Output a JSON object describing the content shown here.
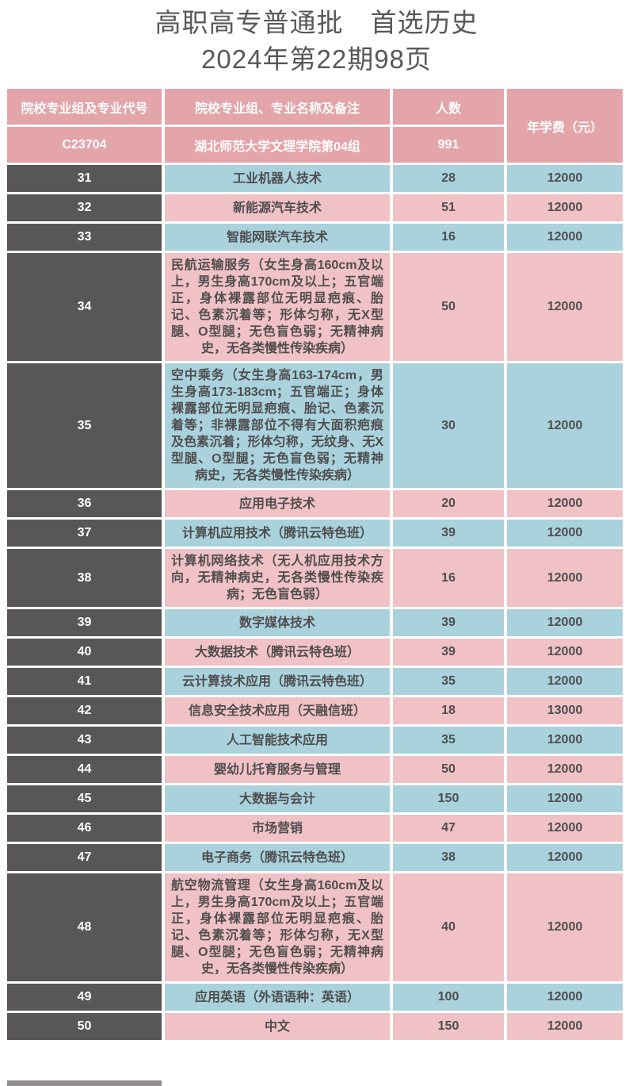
{
  "title": {
    "line1": "高职高专普通批　首选历史",
    "line2": "2024年第22期98页"
  },
  "table": {
    "headers": {
      "col1": "院校专业组及专业代号",
      "col2": "院校专业组、专业名称及备注",
      "col3": "人数",
      "col4": "年学费（元）"
    },
    "group_row": {
      "code": "C23704",
      "name": "湖北师范大学文理学院第04组",
      "count": "991"
    },
    "rows": [
      {
        "code": "31",
        "major": "工业机器人技术",
        "count": "28",
        "fee": "12000",
        "tone": "blue"
      },
      {
        "code": "32",
        "major": "新能源汽车技术",
        "count": "51",
        "fee": "12000",
        "tone": "pink"
      },
      {
        "code": "33",
        "major": "智能网联汽车技术",
        "count": "16",
        "fee": "12000",
        "tone": "blue"
      },
      {
        "code": "34",
        "major": "民航运输服务（女生身高160cm及以上，男生身高170cm及以上；五官端正，身体裸露部位无明显疤痕、胎记、色素沉着等；形体匀称，无X型腿、O型腿；无色盲色弱；无精神病史，无各类慢性传染疾病）",
        "count": "50",
        "fee": "12000",
        "tone": "pink"
      },
      {
        "code": "35",
        "major": "空中乘务（女生身高163-174cm，男生身高173-183cm；五官端正；身体裸露部位无明显疤痕、胎记、色素沉着等；非裸露部位不得有大面积疤痕及色素沉着；形体匀称，无纹身、无X型腿、O型腿；无色盲色弱；无精神病史，无各类慢性传染疾病）",
        "count": "30",
        "fee": "12000",
        "tone": "blue"
      },
      {
        "code": "36",
        "major": "应用电子技术",
        "count": "20",
        "fee": "12000",
        "tone": "pink"
      },
      {
        "code": "37",
        "major": "计算机应用技术（腾讯云特色班）",
        "count": "39",
        "fee": "12000",
        "tone": "blue"
      },
      {
        "code": "38",
        "major": "计算机网络技术（无人机应用技术方向，无精神病史，无各类慢性传染疾病；无色盲色弱）",
        "count": "16",
        "fee": "12000",
        "tone": "pink"
      },
      {
        "code": "39",
        "major": "数字媒体技术",
        "count": "39",
        "fee": "12000",
        "tone": "blue"
      },
      {
        "code": "40",
        "major": "大数据技术（腾讯云特色班）",
        "count": "39",
        "fee": "12000",
        "tone": "pink"
      },
      {
        "code": "41",
        "major": "云计算技术应用（腾讯云特色班）",
        "count": "35",
        "fee": "12000",
        "tone": "blue"
      },
      {
        "code": "42",
        "major": "信息安全技术应用（天融信班）",
        "count": "18",
        "fee": "13000",
        "tone": "pink"
      },
      {
        "code": "43",
        "major": "人工智能技术应用",
        "count": "35",
        "fee": "12000",
        "tone": "blue"
      },
      {
        "code": "44",
        "major": "婴幼儿托育服务与管理",
        "count": "50",
        "fee": "12000",
        "tone": "pink"
      },
      {
        "code": "45",
        "major": "大数据与会计",
        "count": "150",
        "fee": "12000",
        "tone": "blue"
      },
      {
        "code": "46",
        "major": "市场营销",
        "count": "47",
        "fee": "12000",
        "tone": "pink"
      },
      {
        "code": "47",
        "major": "电子商务（腾讯云特色班）",
        "count": "38",
        "fee": "12000",
        "tone": "blue"
      },
      {
        "code": "48",
        "major": "航空物流管理（女生身高160cm及以上，男生身高170cm及以上；五官端正，身体裸露部位无明显疤痕、胎记、色素沉着等；形体匀称，无X型腿、O型腿；无色盲色弱；无精神病史，无各类慢性传染疾病）",
        "count": "40",
        "fee": "12000",
        "tone": "pink"
      },
      {
        "code": "49",
        "major": "应用英语（外语语种：英语）",
        "count": "100",
        "fee": "12000",
        "tone": "blue"
      },
      {
        "code": "50",
        "major": "中文",
        "count": "150",
        "fee": "12000",
        "tone": "pink"
      }
    ]
  },
  "colors": {
    "header_pink": "#e3a5aa",
    "row_pink": "#f0c2c5",
    "row_blue": "#a9d2dc",
    "dark_cell": "#585657",
    "body_text": "#4f4d4e",
    "title_text": "#595757"
  }
}
